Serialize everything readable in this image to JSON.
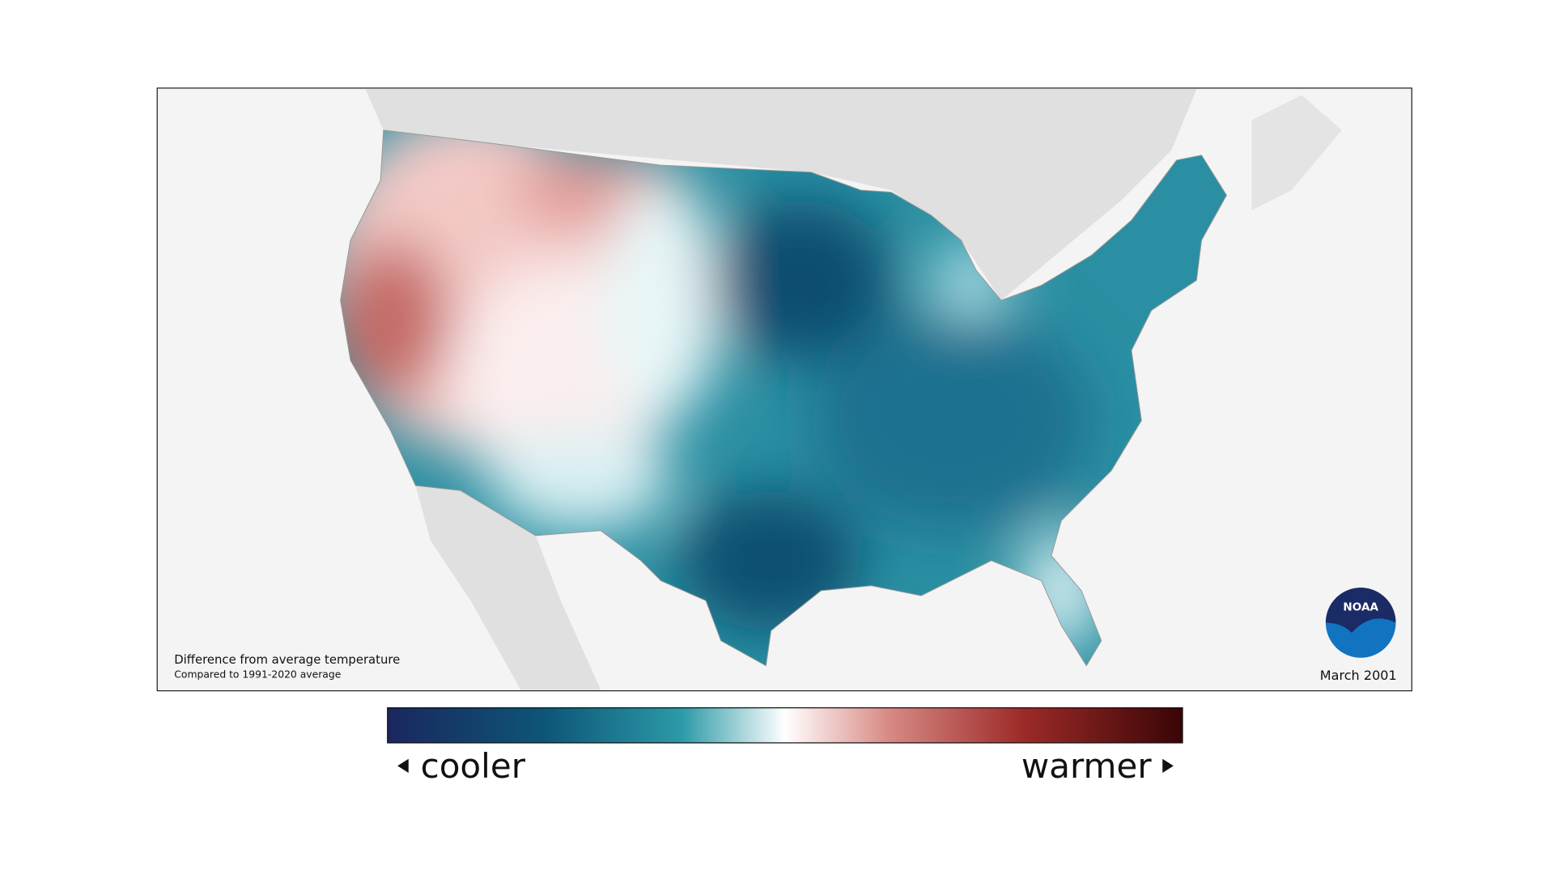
{
  "map": {
    "caption_title": "Difference from average temperature",
    "caption_subtitle": "Compared to 1991-2020 average",
    "date": "March 2001",
    "logo_text": "NOAA"
  },
  "legend": {
    "low_label": "cooler",
    "high_label": "warmer"
  }
}
